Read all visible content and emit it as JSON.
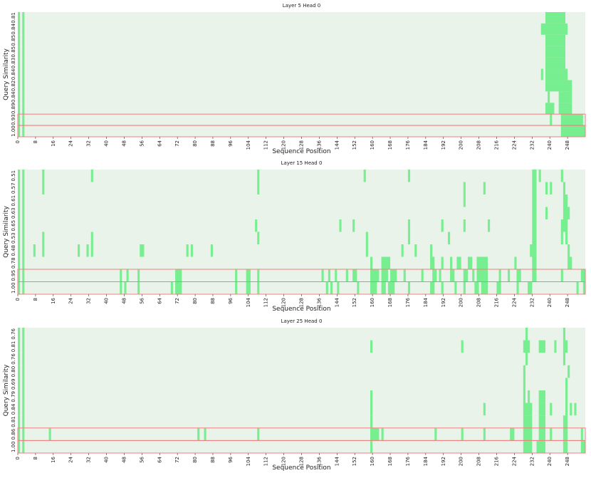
{
  "chart_data": [
    {
      "type": "heatmap",
      "title": "Layer 5 Head 0",
      "xlabel": "Sequence Position",
      "ylabel": "Query Similarity",
      "xlim": [
        0,
        256
      ],
      "xticks": [
        0,
        8,
        16,
        24,
        32,
        40,
        48,
        56,
        64,
        72,
        80,
        88,
        96,
        104,
        112,
        120,
        128,
        136,
        144,
        152,
        160,
        168,
        176,
        184,
        192,
        200,
        208,
        216,
        224,
        232,
        240,
        248
      ],
      "rows": [
        "0.81",
        "0.84",
        "0.85",
        "0.85",
        "0.83",
        "0.84",
        "0.82",
        "0.84",
        "0.89",
        "0.93",
        "1.00"
      ],
      "background": "#e9f3e9",
      "color": "#77ee8f",
      "spans": [
        [
          [
            0,
            1
          ],
          [
            2,
            3
          ],
          [
            238,
            247
          ]
        ],
        [
          [
            0,
            1
          ],
          [
            2,
            3
          ],
          [
            236,
            248
          ]
        ],
        [
          [
            0,
            1
          ],
          [
            2,
            3
          ],
          [
            238,
            247
          ]
        ],
        [
          [
            0,
            1
          ],
          [
            2,
            3
          ],
          [
            238,
            247
          ]
        ],
        [
          [
            0,
            1
          ],
          [
            2,
            3
          ],
          [
            238,
            247
          ]
        ],
        [
          [
            0,
            1
          ],
          [
            2,
            3
          ],
          [
            236,
            237
          ],
          [
            238,
            248
          ]
        ],
        [
          [
            0,
            1
          ],
          [
            2,
            3
          ],
          [
            238,
            250
          ]
        ],
        [
          [
            0,
            1
          ],
          [
            2,
            3
          ],
          [
            239,
            240
          ],
          [
            244,
            250
          ]
        ],
        [
          [
            0,
            1
          ],
          [
            2,
            3
          ],
          [
            238,
            242
          ],
          [
            244,
            250
          ]
        ],
        [
          [
            0,
            1
          ],
          [
            2,
            3
          ],
          [
            240,
            241
          ],
          [
            245,
            255
          ]
        ],
        [
          [
            0,
            1
          ],
          [
            2,
            3
          ],
          [
            245,
            256
          ]
        ]
      ]
    },
    {
      "type": "heatmap",
      "title": "Layer 15 Head 0",
      "xlabel": "Sequence Position",
      "ylabel": "Query Similarity",
      "xlim": [
        0,
        256
      ],
      "xticks": [
        0,
        8,
        16,
        24,
        32,
        40,
        48,
        56,
        64,
        72,
        80,
        88,
        96,
        104,
        112,
        120,
        128,
        136,
        144,
        152,
        160,
        168,
        176,
        184,
        192,
        200,
        208,
        216,
        224,
        232,
        240,
        248
      ],
      "rows": [
        "0.51",
        "0.57",
        "0.61",
        "0.63",
        "0.65",
        "0.53",
        "0.48",
        "0.78",
        "0.95",
        "1.00"
      ],
      "background": "#e9f3e9",
      "color": "#77ee8f",
      "spans": [
        [
          [
            0,
            1
          ],
          [
            2,
            3
          ],
          [
            11,
            12
          ],
          [
            33,
            34
          ],
          [
            108,
            109
          ],
          [
            156,
            157
          ],
          [
            176,
            177
          ],
          [
            232,
            234
          ],
          [
            235,
            236
          ],
          [
            245,
            246
          ]
        ],
        [
          [
            0,
            1
          ],
          [
            2,
            3
          ],
          [
            11,
            12
          ],
          [
            108,
            109
          ],
          [
            201,
            202
          ],
          [
            210,
            211
          ],
          [
            232,
            234
          ],
          [
            238,
            239
          ],
          [
            240,
            241
          ],
          [
            246,
            247
          ]
        ],
        [
          [
            0,
            1
          ],
          [
            2,
            3
          ],
          [
            201,
            202
          ],
          [
            232,
            234
          ],
          [
            246,
            248
          ]
        ],
        [
          [
            0,
            1
          ],
          [
            2,
            3
          ],
          [
            232,
            234
          ],
          [
            238,
            239
          ],
          [
            246,
            249
          ]
        ],
        [
          [
            0,
            1
          ],
          [
            2,
            3
          ],
          [
            107,
            108
          ],
          [
            145,
            146
          ],
          [
            151,
            152
          ],
          [
            176,
            177
          ],
          [
            191,
            192
          ],
          [
            201,
            202
          ],
          [
            212,
            213
          ],
          [
            232,
            234
          ],
          [
            245,
            248
          ]
        ],
        [
          [
            0,
            1
          ],
          [
            2,
            3
          ],
          [
            11,
            12
          ],
          [
            33,
            34
          ],
          [
            108,
            109
          ],
          [
            157,
            158
          ],
          [
            176,
            177
          ],
          [
            194,
            195
          ],
          [
            232,
            234
          ],
          [
            245,
            246
          ],
          [
            247,
            248
          ]
        ],
        [
          [
            0,
            1
          ],
          [
            2,
            3
          ],
          [
            7,
            8
          ],
          [
            11,
            12
          ],
          [
            27,
            28
          ],
          [
            31,
            32
          ],
          [
            33,
            34
          ],
          [
            55,
            57
          ],
          [
            76,
            77
          ],
          [
            78,
            79
          ],
          [
            87,
            88
          ],
          [
            157,
            158
          ],
          [
            173,
            174
          ],
          [
            179,
            180
          ],
          [
            186,
            187
          ],
          [
            231,
            234
          ],
          [
            248,
            249
          ]
        ],
        [
          [
            0,
            1
          ],
          [
            2,
            3
          ],
          [
            159,
            160
          ],
          [
            164,
            168
          ],
          [
            186,
            188
          ],
          [
            191,
            192
          ],
          [
            195,
            196
          ],
          [
            198,
            200
          ],
          [
            203,
            205
          ],
          [
            207,
            212
          ],
          [
            224,
            225
          ],
          [
            232,
            234
          ],
          [
            248,
            250
          ]
        ],
        [
          [
            0,
            1
          ],
          [
            2,
            3
          ],
          [
            46,
            47
          ],
          [
            49,
            50
          ],
          [
            54,
            55
          ],
          [
            71,
            74
          ],
          [
            98,
            99
          ],
          [
            103,
            105
          ],
          [
            108,
            109
          ],
          [
            137,
            138
          ],
          [
            140,
            141
          ],
          [
            143,
            144
          ],
          [
            148,
            149
          ],
          [
            151,
            153
          ],
          [
            159,
            163
          ],
          [
            164,
            167
          ],
          [
            168,
            171
          ],
          [
            174,
            175
          ],
          [
            182,
            183
          ],
          [
            187,
            189
          ],
          [
            190,
            191
          ],
          [
            195,
            197
          ],
          [
            201,
            203
          ],
          [
            205,
            206
          ],
          [
            207,
            212
          ],
          [
            217,
            218
          ],
          [
            221,
            222
          ],
          [
            225,
            227
          ],
          [
            232,
            234
          ],
          [
            245,
            246
          ],
          [
            254,
            256
          ]
        ],
        [
          [
            0,
            1
          ],
          [
            2,
            3
          ],
          [
            46,
            47
          ],
          [
            48,
            49
          ],
          [
            54,
            55
          ],
          [
            69,
            70
          ],
          [
            71,
            74
          ],
          [
            98,
            99
          ],
          [
            103,
            105
          ],
          [
            108,
            109
          ],
          [
            139,
            140
          ],
          [
            141,
            142
          ],
          [
            144,
            145
          ],
          [
            153,
            154
          ],
          [
            159,
            162
          ],
          [
            164,
            166
          ],
          [
            167,
            170
          ],
          [
            176,
            177
          ],
          [
            186,
            188
          ],
          [
            191,
            192
          ],
          [
            197,
            198
          ],
          [
            201,
            202
          ],
          [
            206,
            208
          ],
          [
            209,
            212
          ],
          [
            216,
            218
          ],
          [
            225,
            226
          ],
          [
            230,
            232
          ],
          [
            252,
            253
          ],
          [
            255,
            256
          ]
        ]
      ]
    },
    {
      "type": "heatmap",
      "title": "Layer 25 Head 0",
      "xlabel": "Sequence Position",
      "ylabel": "Query Similarity",
      "xlim": [
        0,
        256
      ],
      "xticks": [
        0,
        8,
        16,
        24,
        32,
        40,
        48,
        56,
        64,
        72,
        80,
        88,
        96,
        104,
        112,
        120,
        128,
        136,
        144,
        152,
        160,
        168,
        176,
        184,
        192,
        200,
        208,
        216,
        224,
        232,
        240,
        248
      ],
      "rows": [
        "0.76",
        "0.81",
        "0.76",
        "0.80",
        "0.69",
        "0.79",
        "0.84",
        "0.81",
        "0.86",
        "1.00"
      ],
      "background": "#e9f3e9",
      "color": "#77ee8f",
      "spans": [
        [
          [
            0,
            1
          ],
          [
            2,
            3
          ],
          [
            229,
            230
          ],
          [
            246,
            247
          ]
        ],
        [
          [
            0,
            1
          ],
          [
            2,
            3
          ],
          [
            159,
            160
          ],
          [
            200,
            201
          ],
          [
            228,
            231
          ],
          [
            235,
            238
          ],
          [
            242,
            243
          ],
          [
            246,
            248
          ]
        ],
        [
          [
            0,
            1
          ],
          [
            2,
            3
          ],
          [
            229,
            230
          ],
          [
            246,
            247
          ]
        ],
        [
          [
            0,
            1
          ],
          [
            2,
            3
          ],
          [
            228,
            229
          ],
          [
            248,
            249
          ]
        ],
        [
          [
            0,
            1
          ],
          [
            2,
            3
          ],
          [
            228,
            229
          ],
          [
            247,
            248
          ]
        ],
        [
          [
            0,
            1
          ],
          [
            2,
            3
          ],
          [
            159,
            160
          ],
          [
            228,
            229
          ],
          [
            230,
            231
          ],
          [
            235,
            238
          ],
          [
            247,
            248
          ]
        ],
        [
          [
            0,
            1
          ],
          [
            2,
            3
          ],
          [
            159,
            160
          ],
          [
            210,
            211
          ],
          [
            228,
            232
          ],
          [
            235,
            238
          ],
          [
            240,
            241
          ],
          [
            247,
            248
          ],
          [
            249,
            250
          ],
          [
            251,
            252
          ]
        ],
        [
          [
            0,
            1
          ],
          [
            2,
            3
          ],
          [
            159,
            160
          ],
          [
            228,
            232
          ],
          [
            235,
            238
          ],
          [
            246,
            248
          ]
        ],
        [
          [
            0,
            1
          ],
          [
            2,
            3
          ],
          [
            14,
            15
          ],
          [
            81,
            82
          ],
          [
            84,
            85
          ],
          [
            108,
            109
          ],
          [
            159,
            163
          ],
          [
            164,
            165
          ],
          [
            188,
            189
          ],
          [
            200,
            201
          ],
          [
            210,
            211
          ],
          [
            222,
            224
          ],
          [
            228,
            232
          ],
          [
            235,
            238
          ],
          [
            240,
            241
          ],
          [
            246,
            248
          ],
          [
            254,
            255
          ]
        ],
        [
          [
            0,
            1
          ],
          [
            2,
            3
          ],
          [
            159,
            160
          ],
          [
            228,
            232
          ],
          [
            234,
            238
          ],
          [
            246,
            248
          ],
          [
            254,
            256
          ]
        ]
      ]
    }
  ]
}
